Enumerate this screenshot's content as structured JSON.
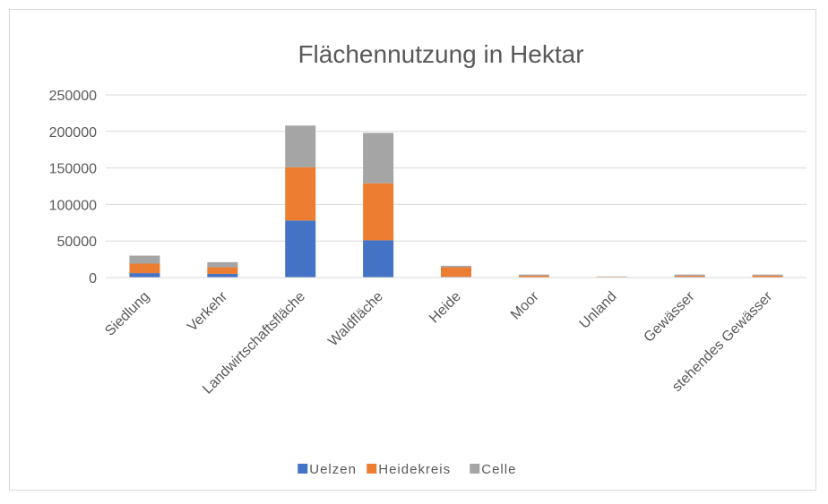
{
  "chart_data": {
    "type": "stacked_bar",
    "title": "Flächennutzung in Hektar",
    "categories": [
      "Siedlung",
      "Verkehr",
      "Landwirtschaftsfläche",
      "Waldfläche",
      "Heide",
      "Moor",
      "Unland",
      "Gewässer",
      "stehendes Gewässer"
    ],
    "series": [
      {
        "name": "Uelzen",
        "color": "#4472c4",
        "values": [
          6000,
          5000,
          78000,
          51000,
          1000,
          500,
          300,
          1000,
          500
        ]
      },
      {
        "name": "Heidekreis",
        "color": "#ed7d31",
        "values": [
          13000,
          9000,
          73000,
          78000,
          13000,
          2000,
          700,
          1500,
          2000
        ]
      },
      {
        "name": "Celle",
        "color": "#a5a5a5",
        "values": [
          11000,
          7000,
          57000,
          69000,
          2000,
          1500,
          500,
          1500,
          1500
        ]
      }
    ],
    "ylim": [
      0,
      250000
    ],
    "yticks": [
      0,
      50000,
      100000,
      150000,
      200000,
      250000
    ],
    "grid": true,
    "legend": "bottom"
  }
}
